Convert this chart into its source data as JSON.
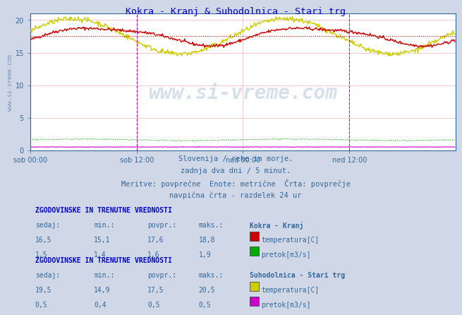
{
  "title": "Kokra - Kranj & Suhodolnica - Stari trg",
  "title_color": "#0000cc",
  "bg_color": "#d0d8e8",
  "plot_bg_color": "#ffffff",
  "grid_color": "#e8b8b8",
  "xlim": [
    0,
    576
  ],
  "ylim": [
    0,
    21
  ],
  "yticks": [
    0,
    5,
    10,
    15,
    20
  ],
  "xtick_labels": [
    "sob 00:00",
    "sob 12:00",
    "ned 00:00",
    "ned 12:00"
  ],
  "xtick_positions": [
    0,
    144,
    288,
    432
  ],
  "watermark": "www.si-vreme.com",
  "subtitle_lines": [
    "Slovenija / reke in morje.",
    "zadnja dva dni / 5 minut.",
    "Meritve: povprečne  Enote: metrične  Črta: povprečje",
    "navpična črta - razdelek 24 ur"
  ],
  "section1_header": "ZGODOVINSKE IN TRENUTNE VREDNOSTI",
  "section1_station": "Kokra - Kranj",
  "section1_rows": [
    {
      "sedaj": "16,5",
      "min": "15,1",
      "povpr": "17,6",
      "maks": "18,8",
      "label": "temperatura[C]",
      "color": "#cc0000"
    },
    {
      "sedaj": "1,5",
      "min": "1,4",
      "povpr": "1,6",
      "maks": "1,9",
      "label": "pretok[m3/s]",
      "color": "#00aa00"
    }
  ],
  "section2_header": "ZGODOVINSKE IN TRENUTNE VREDNOSTI",
  "section2_station": "Suhodolnica - Stari trg",
  "section2_rows": [
    {
      "sedaj": "19,5",
      "min": "14,9",
      "povpr": "17,5",
      "maks": "20,5",
      "label": "temperatura[C]",
      "color": "#cccc00"
    },
    {
      "sedaj": "0,5",
      "min": "0,4",
      "povpr": "0,5",
      "maks": "0,5",
      "label": "pretok[m3/s]",
      "color": "#cc00cc"
    }
  ],
  "col_headers": [
    "sedaj:",
    "min.:",
    "povpr.:",
    "maks.:"
  ],
  "avg_line_kokra": 17.6,
  "avg_line_color": "#cc0000",
  "vline_positions": [
    144,
    432
  ],
  "vline_color": "#cc00cc",
  "n_points": 576,
  "temp_kokra_color": "#cc0000",
  "temp_suho_color": "#cccc00",
  "flow_kokra_color": "#00aa00",
  "flow_suho_color": "#cc00cc",
  "left_label": "www.si-vreme.com",
  "axis_color": "#336699",
  "arrow_color": "#cc0000"
}
